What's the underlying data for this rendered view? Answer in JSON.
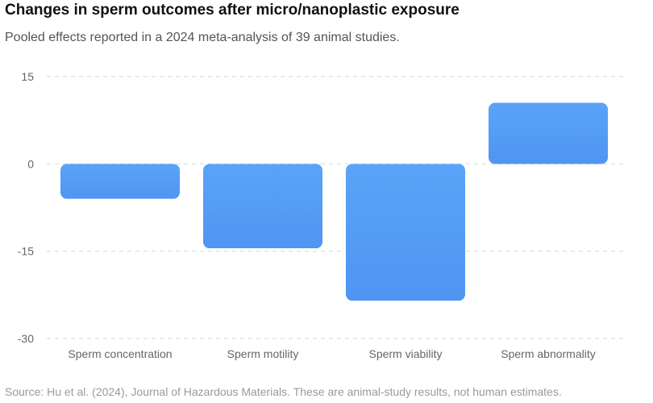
{
  "header": {
    "title": "Changes in sperm outcomes after micro/nanoplastic exposure",
    "subtitle": "Pooled effects reported in a 2024 meta-analysis of 39 animal studies."
  },
  "footer": {
    "source": "Source: Hu et al. (2024), Journal of Hazardous Materials. These are animal-study results, not human estimates."
  },
  "colors": {
    "bar_top": "#5ba3f8",
    "bar_bottom": "#4f95f2",
    "gridline": "#e3e3e3",
    "tick_text": "#666666"
  },
  "chart_data": {
    "type": "bar",
    "categories": [
      "Sperm concentration",
      "Sperm motility",
      "Sperm viability",
      "Sperm abnormality"
    ],
    "values": [
      -6,
      -14.5,
      -23.5,
      10.5
    ],
    "yticks": [
      15,
      0,
      -15,
      -30
    ],
    "ylim": [
      -30,
      15
    ],
    "grid": true,
    "legend": "none"
  }
}
